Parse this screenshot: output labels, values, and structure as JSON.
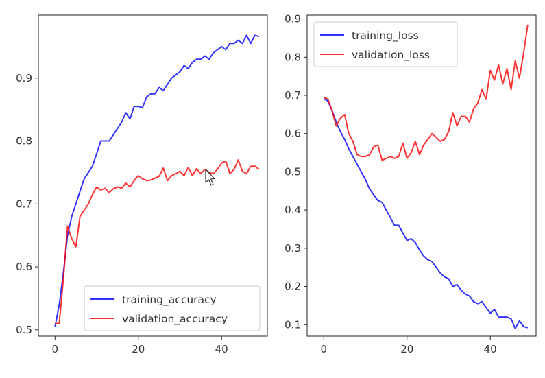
{
  "chart_data": [
    {
      "type": "line",
      "title": "",
      "xlabel": "",
      "ylabel": "",
      "xlim": [
        -4,
        51
      ],
      "ylim": [
        0.49,
        1.0
      ],
      "xticks": [
        0,
        20,
        40
      ],
      "yticks": [
        0.5,
        0.6,
        0.7,
        0.8,
        0.9
      ],
      "xtick_labels": [
        "0",
        "20",
        "40"
      ],
      "ytick_labels": [
        "0.5",
        "0.6",
        "0.7",
        "0.8",
        "0.9"
      ],
      "grid": false,
      "legend_position": "lower-right",
      "x": [
        0,
        1,
        2,
        3,
        4,
        5,
        6,
        7,
        8,
        9,
        10,
        11,
        12,
        13,
        14,
        15,
        16,
        17,
        18,
        19,
        20,
        21,
        22,
        23,
        24,
        25,
        26,
        27,
        28,
        29,
        30,
        31,
        32,
        33,
        34,
        35,
        36,
        37,
        38,
        39,
        40,
        41,
        42,
        43,
        44,
        45,
        46,
        47,
        48,
        49
      ],
      "series": [
        {
          "name": "training_accuracy",
          "color": "#0000ff",
          "values": [
            0.505,
            0.54,
            0.59,
            0.65,
            0.68,
            0.7,
            0.72,
            0.74,
            0.75,
            0.76,
            0.78,
            0.8,
            0.8,
            0.8,
            0.81,
            0.82,
            0.83,
            0.845,
            0.835,
            0.855,
            0.855,
            0.853,
            0.87,
            0.875,
            0.875,
            0.885,
            0.88,
            0.89,
            0.9,
            0.905,
            0.91,
            0.92,
            0.915,
            0.925,
            0.93,
            0.93,
            0.935,
            0.93,
            0.94,
            0.945,
            0.95,
            0.945,
            0.955,
            0.955,
            0.96,
            0.955,
            0.968,
            0.955,
            0.968,
            0.966
          ]
        },
        {
          "name": "validation_accuracy",
          "color": "#ff0000",
          "values": [
            0.51,
            0.51,
            0.58,
            0.665,
            0.645,
            0.632,
            0.68,
            0.69,
            0.7,
            0.715,
            0.727,
            0.722,
            0.725,
            0.718,
            0.724,
            0.727,
            0.725,
            0.733,
            0.727,
            0.737,
            0.745,
            0.74,
            0.737,
            0.738,
            0.741,
            0.744,
            0.757,
            0.737,
            0.745,
            0.748,
            0.752,
            0.745,
            0.758,
            0.745,
            0.756,
            0.748,
            0.755,
            0.75,
            0.748,
            0.755,
            0.765,
            0.768,
            0.748,
            0.755,
            0.77,
            0.752,
            0.748,
            0.76,
            0.76,
            0.755
          ]
        }
      ]
    },
    {
      "type": "line",
      "title": "",
      "xlabel": "",
      "ylabel": "",
      "xlim": [
        -4,
        51
      ],
      "ylim": [
        0.07,
        0.91
      ],
      "xticks": [
        0,
        20,
        40
      ],
      "yticks": [
        0.1,
        0.2,
        0.3,
        0.4,
        0.5,
        0.6,
        0.7,
        0.8,
        0.9
      ],
      "xtick_labels": [
        "0",
        "20",
        "40"
      ],
      "ytick_labels": [
        "0.1",
        "0.2",
        "0.3",
        "0.4",
        "0.5",
        "0.6",
        "0.7",
        "0.8",
        "0.9"
      ],
      "grid": false,
      "legend_position": "upper-left",
      "x": [
        0,
        1,
        2,
        3,
        4,
        5,
        6,
        7,
        8,
        9,
        10,
        11,
        12,
        13,
        14,
        15,
        16,
        17,
        18,
        19,
        20,
        21,
        22,
        23,
        24,
        25,
        26,
        27,
        28,
        29,
        30,
        31,
        32,
        33,
        34,
        35,
        36,
        37,
        38,
        39,
        40,
        41,
        42,
        43,
        44,
        45,
        46,
        47,
        48,
        49
      ],
      "series": [
        {
          "name": "training_loss",
          "color": "#0000ff",
          "values": [
            0.692,
            0.685,
            0.66,
            0.63,
            0.605,
            0.585,
            0.56,
            0.54,
            0.52,
            0.5,
            0.48,
            0.455,
            0.44,
            0.425,
            0.42,
            0.4,
            0.38,
            0.36,
            0.36,
            0.34,
            0.32,
            0.325,
            0.315,
            0.295,
            0.28,
            0.27,
            0.265,
            0.25,
            0.235,
            0.225,
            0.22,
            0.2,
            0.205,
            0.19,
            0.18,
            0.175,
            0.16,
            0.155,
            0.16,
            0.145,
            0.13,
            0.14,
            0.12,
            0.12,
            0.12,
            0.115,
            0.09,
            0.11,
            0.095,
            0.092
          ]
        },
        {
          "name": "validation_loss",
          "color": "#ff0000",
          "values": [
            0.695,
            0.69,
            0.66,
            0.62,
            0.64,
            0.65,
            0.6,
            0.58,
            0.545,
            0.54,
            0.54,
            0.545,
            0.565,
            0.57,
            0.53,
            0.535,
            0.54,
            0.535,
            0.54,
            0.575,
            0.535,
            0.55,
            0.58,
            0.545,
            0.57,
            0.585,
            0.6,
            0.59,
            0.58,
            0.585,
            0.605,
            0.655,
            0.62,
            0.645,
            0.645,
            0.63,
            0.665,
            0.68,
            0.715,
            0.69,
            0.765,
            0.74,
            0.78,
            0.73,
            0.77,
            0.715,
            0.79,
            0.745,
            0.81,
            0.885
          ]
        }
      ]
    }
  ]
}
